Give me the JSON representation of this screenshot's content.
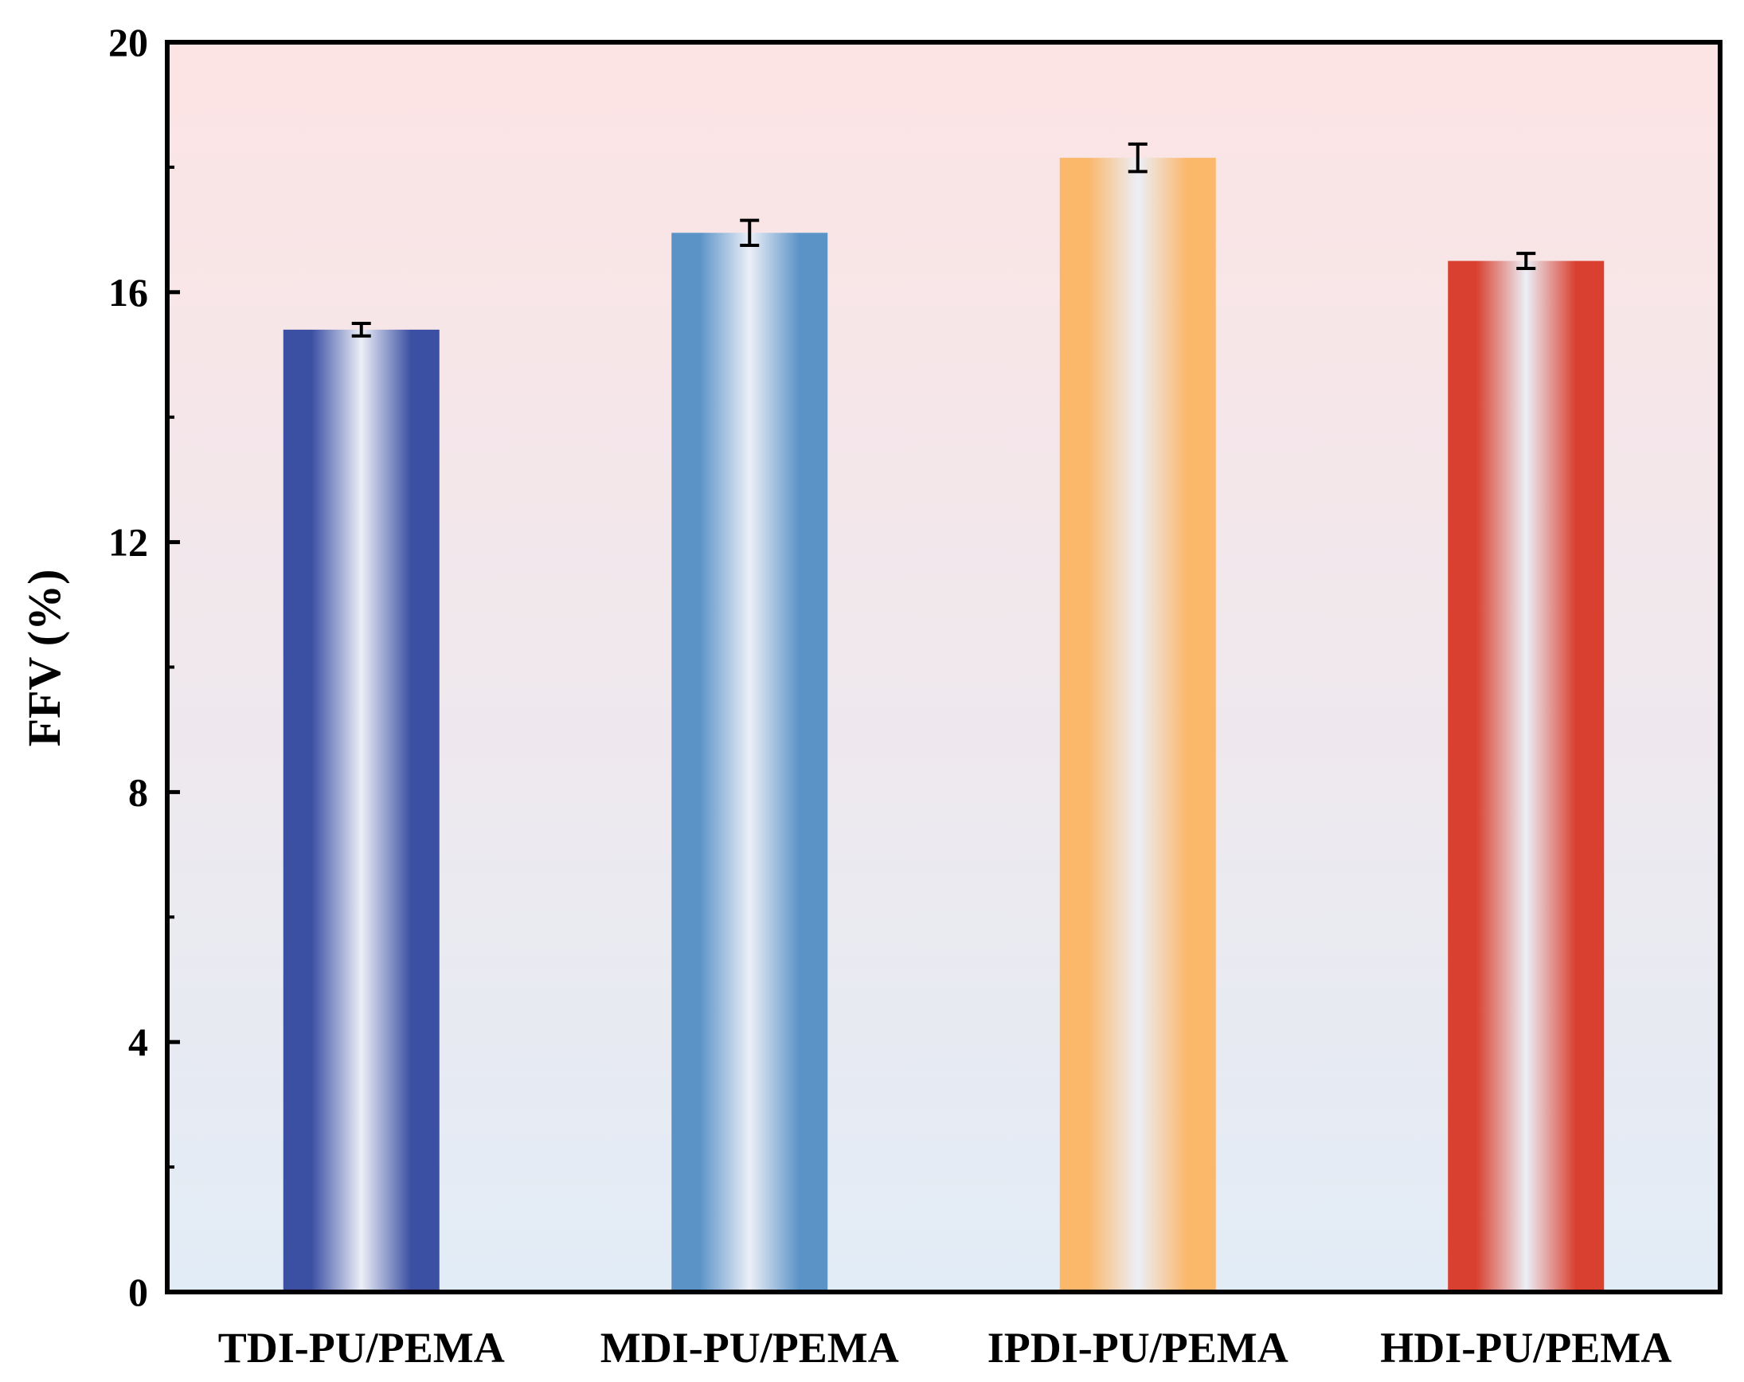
{
  "chart_data": {
    "type": "bar",
    "title": "",
    "xlabel": "",
    "ylabel": "FFV (%)",
    "ylim": [
      0,
      20
    ],
    "yticks": [
      0,
      4,
      8,
      12,
      16,
      20
    ],
    "minor_ticks": [
      2,
      6,
      10,
      14,
      18
    ],
    "grid": false,
    "categories": [
      "TDI-PU/PEMA",
      "MDI-PU/PEMA",
      "IPDI-PU/PEMA",
      "HDI-PU/PEMA"
    ],
    "values": [
      15.4,
      16.95,
      18.15,
      16.5
    ],
    "errors": [
      0.1,
      0.2,
      0.22,
      0.12
    ],
    "colors": [
      "#3b4fa3",
      "#5b93c7",
      "#fbb76a",
      "#d9402f"
    ],
    "background": {
      "top": "#fde4e4",
      "bottom": "#e2ecf6"
    }
  }
}
